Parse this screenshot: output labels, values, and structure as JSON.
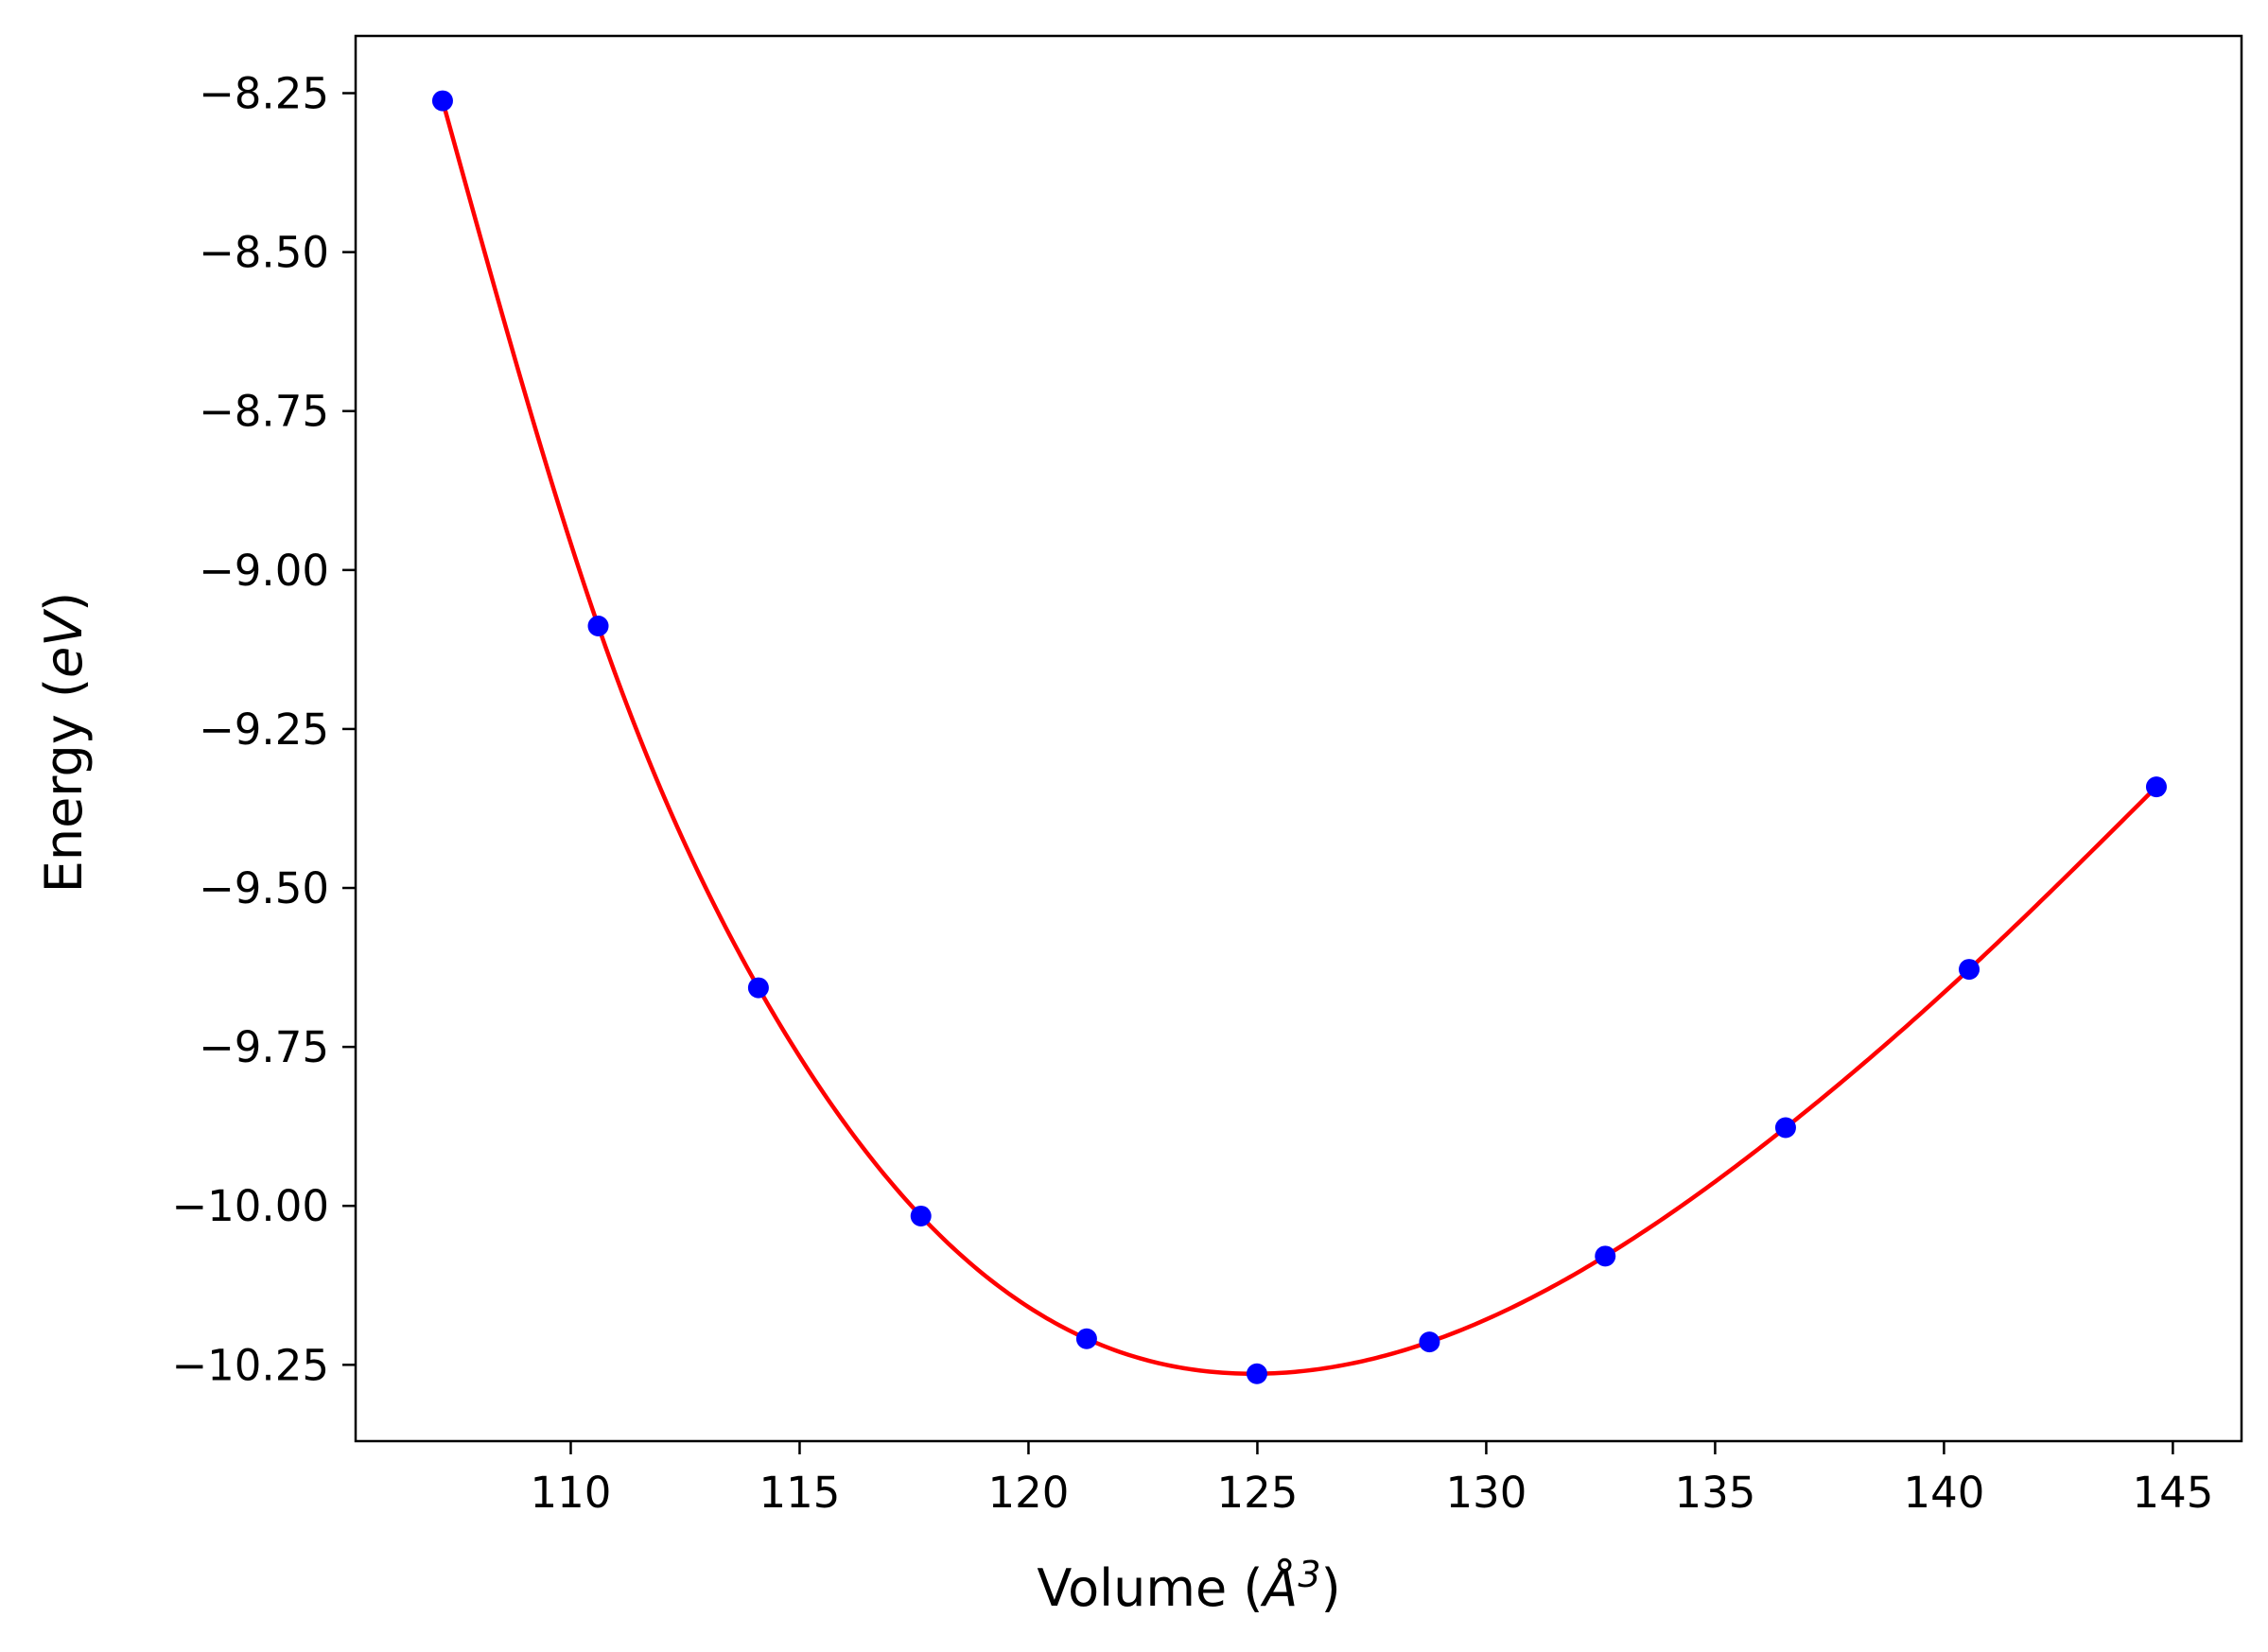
{
  "chart_data": {
    "type": "scatter",
    "title": "",
    "xlabel": {
      "prefix": "Volume (",
      "var": "Å",
      "exp": "3",
      "suffix": ")"
    },
    "ylabel": {
      "prefix": "Energy (",
      "var": "eV",
      "suffix": ")"
    },
    "xlim": [
      105.3,
      146.5
    ],
    "ylim": [
      -10.37,
      -8.16
    ],
    "xticks": [
      110,
      115,
      120,
      125,
      130,
      135,
      140,
      145
    ],
    "xtick_labels": [
      "110",
      "115",
      "120",
      "125",
      "130",
      "135",
      "140",
      "145"
    ],
    "yticks": [
      -8.25,
      -8.5,
      -8.75,
      -9.0,
      -9.25,
      -9.5,
      -9.75,
      -10.0,
      -10.25
    ],
    "ytick_labels": [
      "−8.25",
      "−8.50",
      "−8.75",
      "−9.00",
      "−9.25",
      "−9.50",
      "−9.75",
      "−10.00",
      "−10.25"
    ],
    "grid": false,
    "series": [
      {
        "kind": "scatter",
        "color": "#0000ff",
        "x": [
          107.2,
          110.6,
          114.1,
          117.65,
          121.27,
          124.99,
          128.76,
          132.6,
          136.54,
          140.55,
          144.64
        ],
        "y": [
          -8.262,
          -9.088,
          -9.657,
          -10.016,
          -10.209,
          -10.264,
          -10.214,
          -10.079,
          -9.877,
          -9.628,
          -9.341
        ]
      },
      {
        "kind": "line",
        "color": "#ff0000",
        "fit": "cubic-spline through data points"
      }
    ]
  }
}
